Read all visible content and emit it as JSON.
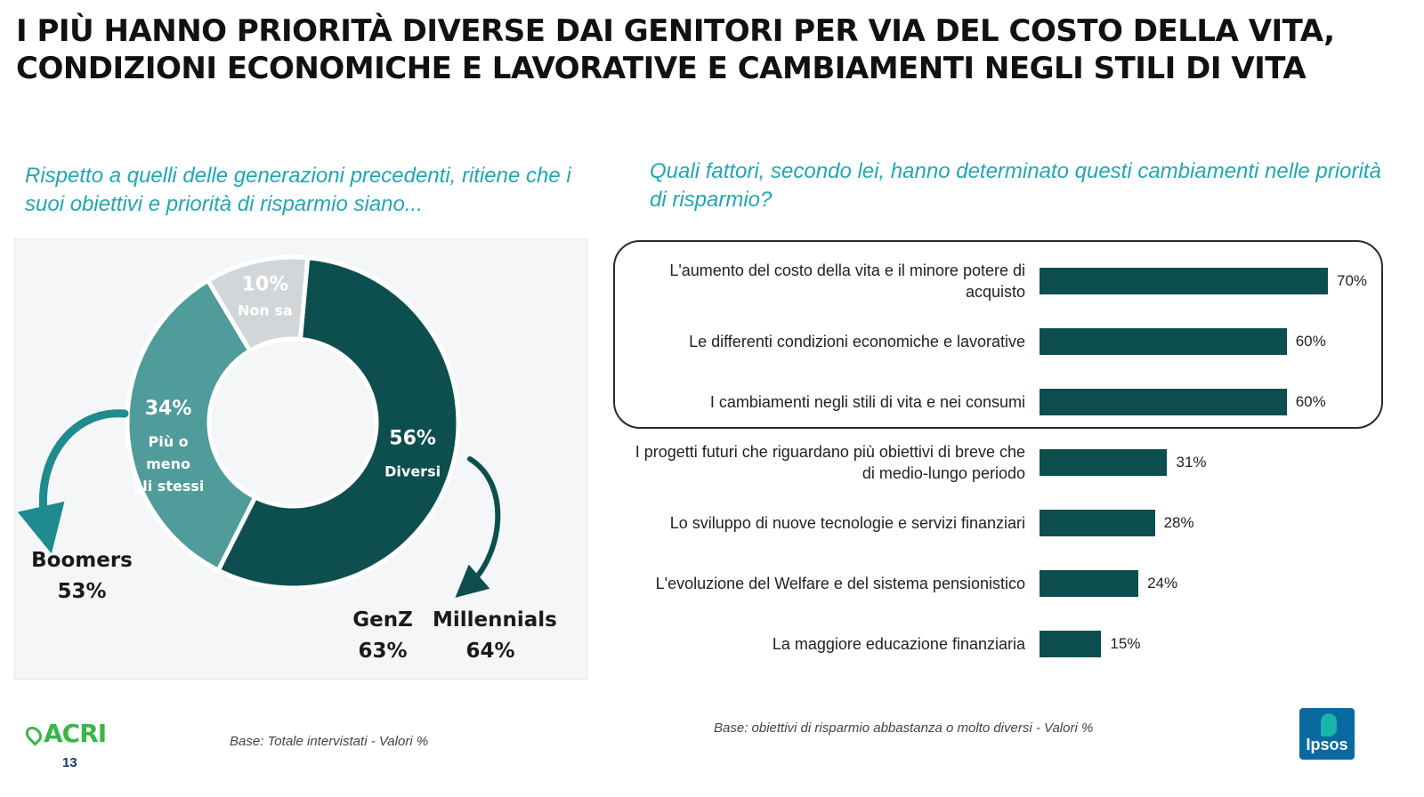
{
  "header": {
    "title_line1": "I PIÙ HANNO PRIORITÀ DIVERSE DAI GENITORI PER VIA DEL COSTO DELLA VITA,",
    "title_line2": "CONDIZIONI ECONOMICHE E LAVORATIVE E CAMBIAMENTI NEGLI STILI DI VITA"
  },
  "left": {
    "question": "Rispetto a quelli delle generazioni precedenti, ritiene che i suoi obiettivi e priorità di risparmio siano...",
    "base": "Base: Totale intervistati  - Valori %",
    "generations": [
      {
        "name": "Boomers",
        "value": "53%"
      },
      {
        "name": "GenZ",
        "value": "63%"
      },
      {
        "name": "Millennials",
        "value": "64%"
      }
    ]
  },
  "right": {
    "question": "Quali fattori, secondo lei, hanno determinato questi cambiamenti nelle priorità di risparmio?",
    "base": "Base: obiettivi di risparmio abbastanza o molto diversi  - Valori %"
  },
  "chart_data": [
    {
      "type": "pie",
      "donut": true,
      "slices": [
        {
          "label": "Diversi",
          "value": 56,
          "value_label": "56%",
          "color": "#0c4f4e"
        },
        {
          "label": "Più o meno gli stessi",
          "value": 34,
          "value_label": "34%",
          "color": "#4f9c9a"
        },
        {
          "label": "Non sa",
          "value": 10,
          "value_label": "10%",
          "color": "#d3d6d8"
        }
      ]
    },
    {
      "type": "bar",
      "orientation": "horizontal",
      "xlim": [
        0,
        100
      ],
      "bar_color": "#0c4f4e",
      "highlighted_count": 3,
      "categories": [
        "L'aumento del costo della vita e il minore potere di acquisto",
        "Le differenti condizioni economiche e lavorative",
        "I cambiamenti negli stili di vita e nei consumi",
        "I progetti futuri che riguardano più obiettivi di breve che di medio-lungo periodo",
        "Lo sviluppo di nuove tecnologie e servizi finanziari",
        "L'evoluzione del Welfare e del sistema pensionistico",
        "La maggiore educazione finanziaria"
      ],
      "values": [
        70,
        60,
        60,
        31,
        28,
        24,
        15
      ],
      "value_labels": [
        "70%",
        "60%",
        "60%",
        "31%",
        "28%",
        "24%",
        "15%"
      ]
    }
  ],
  "footer": {
    "logo_left": "ACRI",
    "page_number": "13",
    "logo_right": "Ipsos"
  }
}
